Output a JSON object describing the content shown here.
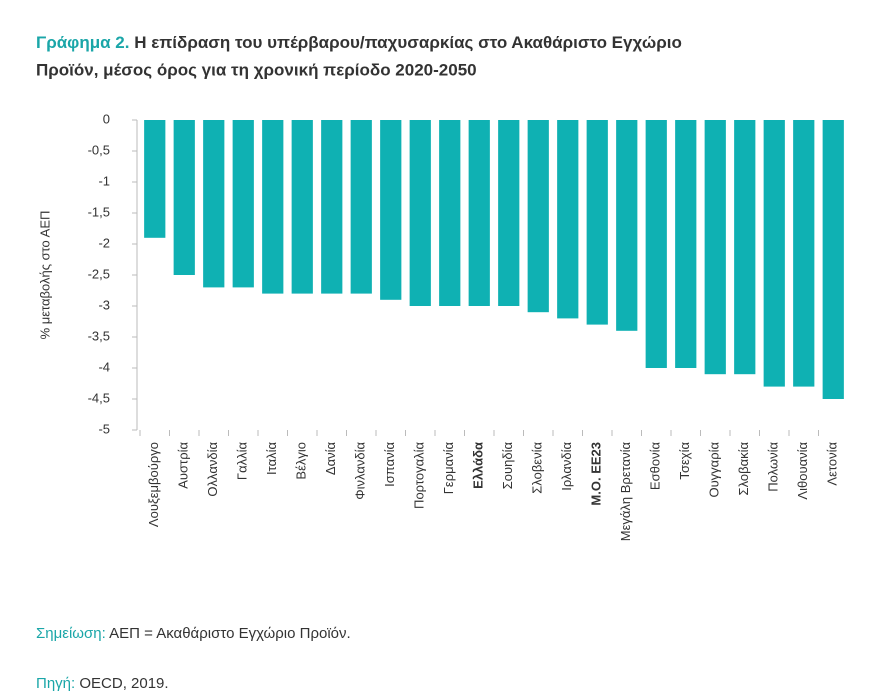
{
  "chart_data": {
    "type": "bar",
    "title_label": "Γράφημα 2.",
    "title": "Η επίδραση του υπέρβαρου/παχυσαρκίας στο Ακαθάριστο Εγχώριο",
    "title_line2": "Προϊόν, μέσος όρος για τη χρονική περίοδο 2020-2050",
    "y_label": "% μεταβολής στο ΑΕΠ",
    "categories": [
      "Λουξεμβούργο",
      "Αυστρία",
      "Ολλανδία",
      "Γαλλία",
      "Ιταλία",
      "Βέλγιο",
      "Δανία",
      "Φινλανδία",
      "Ισπανία",
      "Πορτογαλία",
      "Γερμανία",
      "Ελλάδα",
      "Σουηδία",
      "Σλοβενία",
      "Ιρλανδία",
      "Μ.Ο. ΕΕ23",
      "Μεγάλη Βρετανία",
      "Εσθονία",
      "Τσεχία",
      "Ουγγαρία",
      "Σλοβακία",
      "Πολωνία",
      "Λιθουανία",
      "Λετονία"
    ],
    "values": [
      -1.9,
      -2.5,
      -2.7,
      -2.7,
      -2.8,
      -2.8,
      -2.8,
      -2.8,
      -2.9,
      -3.0,
      -3.0,
      -3.0,
      -3.0,
      -3.1,
      -3.2,
      -3.3,
      -3.4,
      -4.0,
      -4.0,
      -4.1,
      -4.1,
      -4.3,
      -4.3,
      -4.5
    ],
    "bold_indices": [
      11,
      15
    ],
    "color": "#0fb1b3",
    "ylim": [
      0,
      -5
    ],
    "yticks": [
      0,
      {
        "value": -0.5,
        "label": "-0,5"
      },
      -1,
      {
        "value": -1.5,
        "label": "-1,5"
      },
      -2,
      {
        "value": -2.5,
        "label": "-2,5"
      },
      -3,
      {
        "value": -3.5,
        "label": "-3,5"
      },
      -4,
      {
        "value": -4.5,
        "label": "-4,5"
      },
      -5
    ],
    "grid": false
  },
  "notes": {
    "note_label": "Σημείωση:",
    "note_text": "ΑΕΠ = Ακαθάριστο Εγχώριο Προϊόν.",
    "source_label": "Πηγή:",
    "source_text": "OECD, 2019."
  }
}
